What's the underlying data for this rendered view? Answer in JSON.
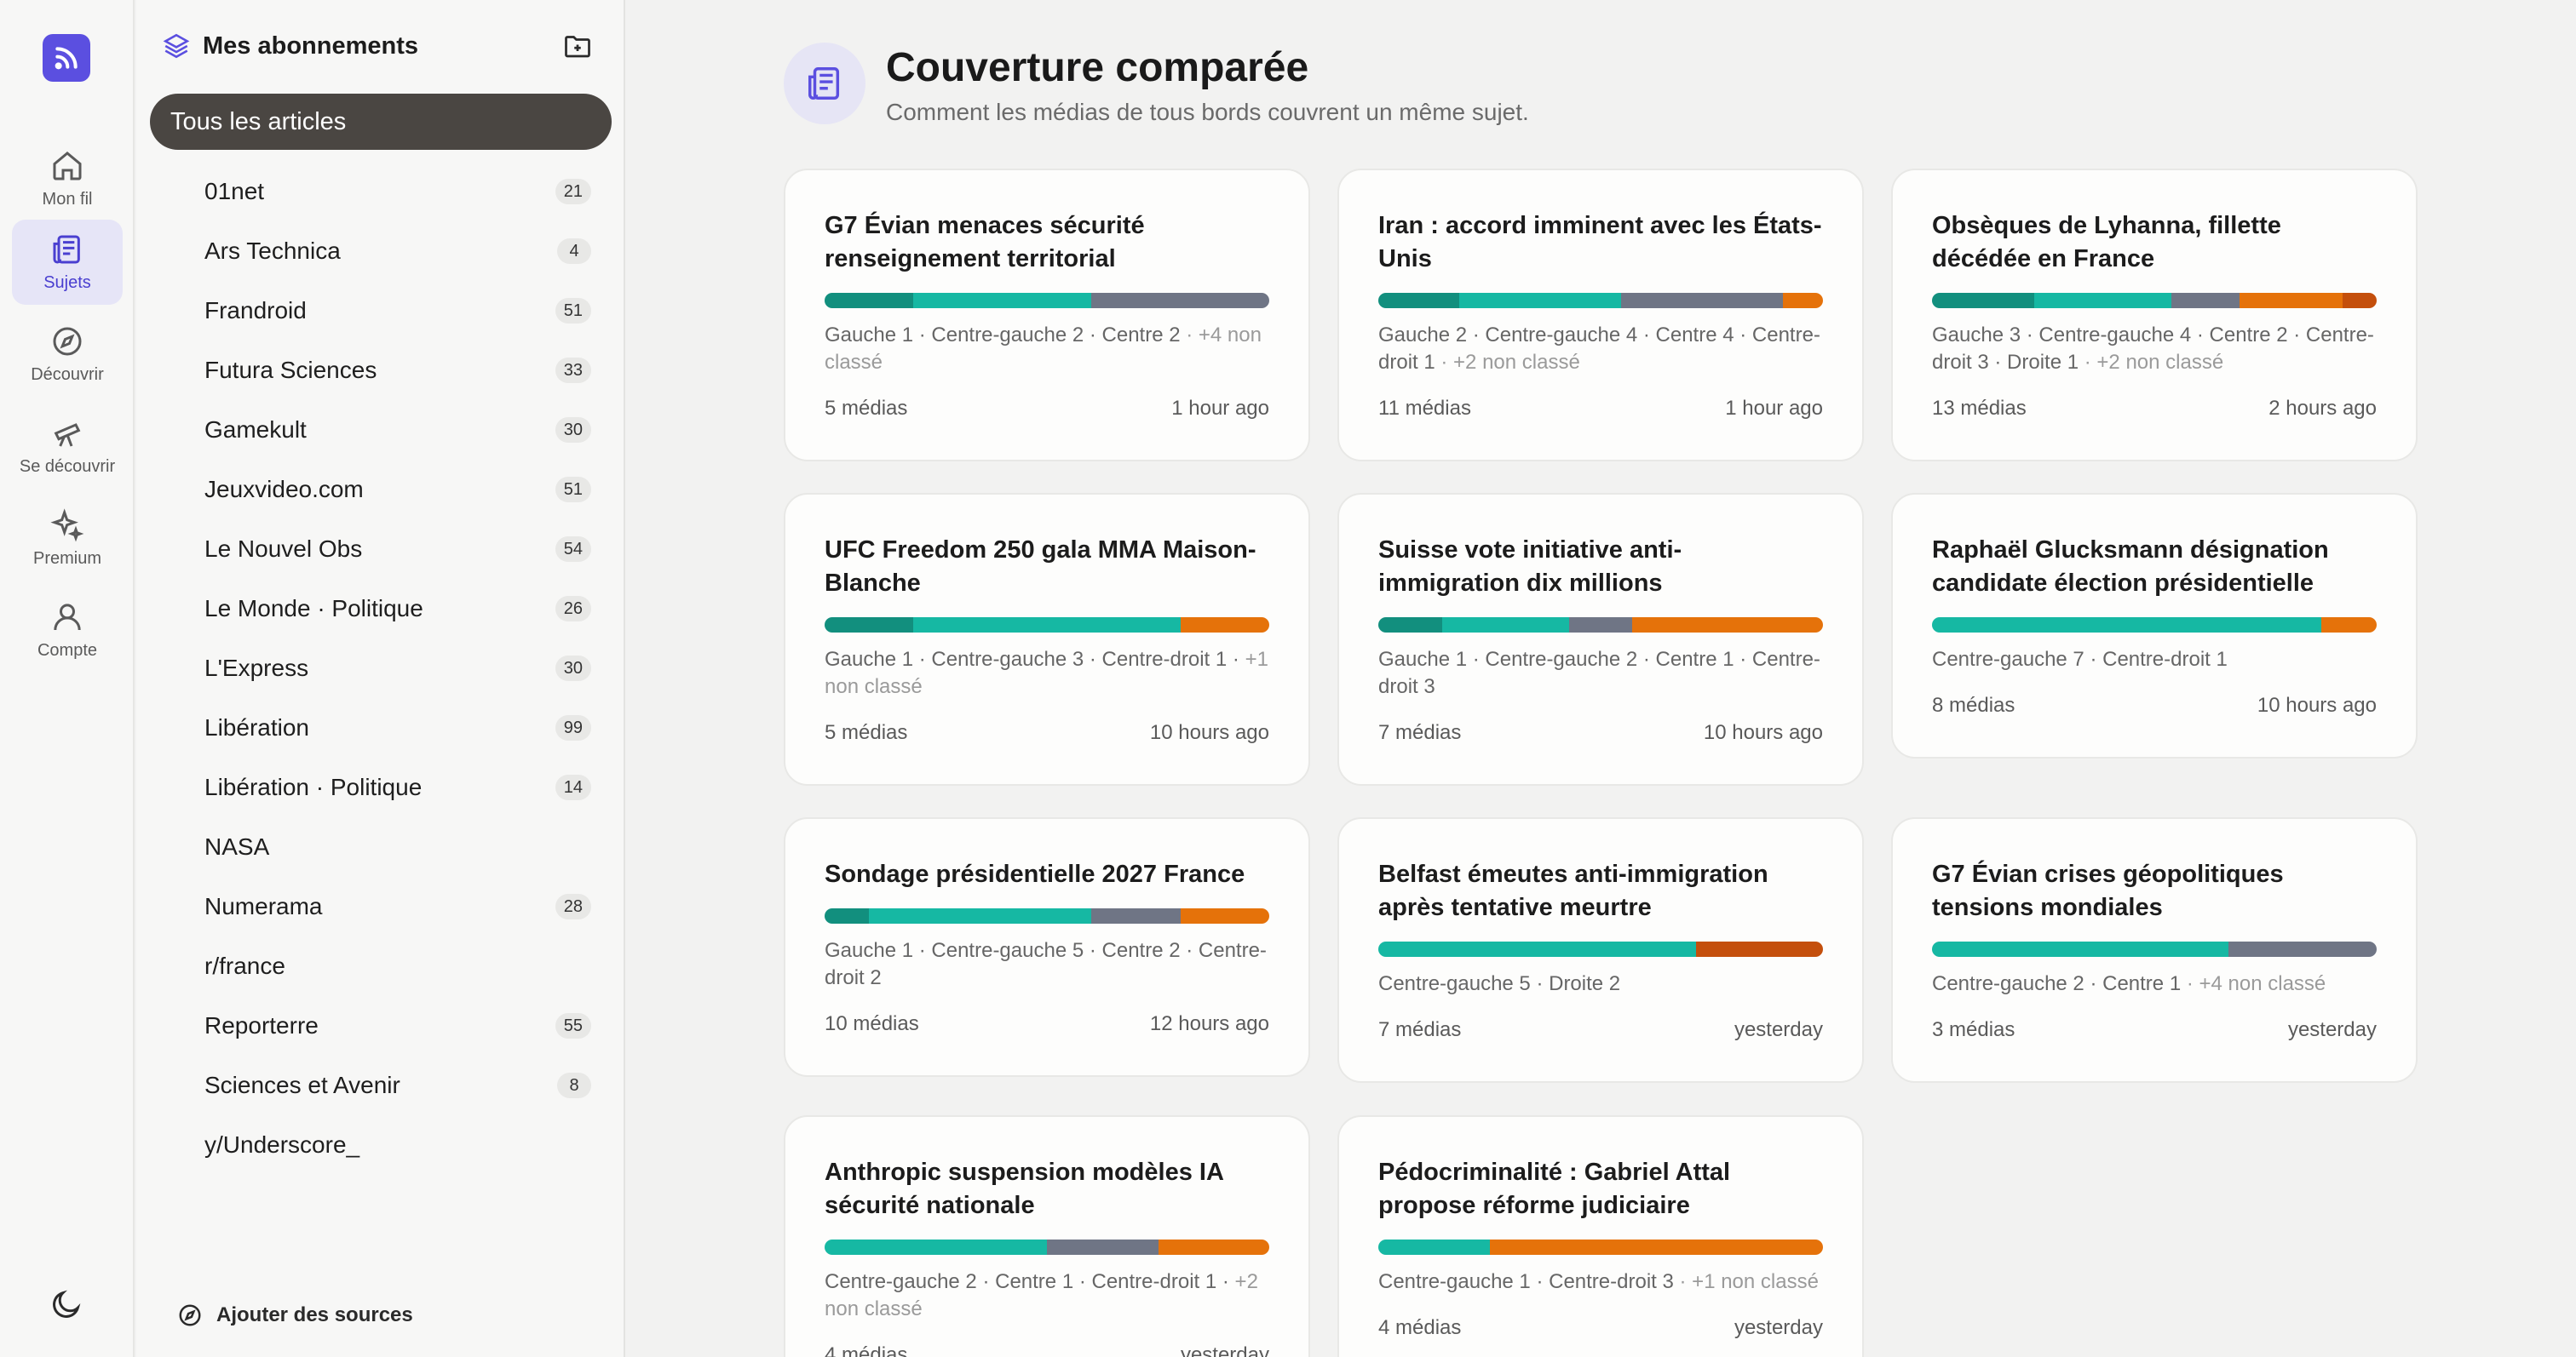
{
  "rail": {
    "items": [
      {
        "label": "Mon fil",
        "icon": "home-icon"
      },
      {
        "label": "Sujets",
        "icon": "newspaper-icon",
        "active": true
      },
      {
        "label": "Découvrir",
        "icon": "compass-icon"
      },
      {
        "label": "Se découvrir",
        "icon": "telescope-icon"
      },
      {
        "label": "Premium",
        "icon": "sparkles-icon"
      },
      {
        "label": "Compte",
        "icon": "user-icon"
      }
    ]
  },
  "sidebar": {
    "title": "Mes abonnements",
    "all_articles": "Tous les articles",
    "feeds": [
      {
        "name": "01net",
        "count": "21"
      },
      {
        "name": "Ars Technica",
        "count": "4"
      },
      {
        "name": "Frandroid",
        "count": "51"
      },
      {
        "name": "Futura Sciences",
        "count": "33"
      },
      {
        "name": "Gamekult",
        "count": "30"
      },
      {
        "name": "Jeuxvideo.com",
        "count": "51"
      },
      {
        "name": "Le Nouvel Obs",
        "count": "54"
      },
      {
        "name": "Le Monde · Politique",
        "count": "26"
      },
      {
        "name": "L'Express",
        "count": "30"
      },
      {
        "name": "Libération",
        "count": "99"
      },
      {
        "name": "Libération · Politique",
        "count": "14"
      },
      {
        "name": "NASA",
        "count": ""
      },
      {
        "name": "Numerama",
        "count": "28"
      },
      {
        "name": "r/france",
        "count": ""
      },
      {
        "name": "Reporterre",
        "count": "55"
      },
      {
        "name": "Sciences et Avenir",
        "count": "8"
      },
      {
        "name": "y/Underscore_",
        "count": ""
      }
    ],
    "add_sources": "Ajouter des sources"
  },
  "main": {
    "title": "Couverture comparée",
    "subtitle": "Comment les médias de tous bords couvrent un même sujet."
  },
  "colors": {
    "gauche": "#128f7e",
    "centre_gauche": "#16b8a3",
    "centre": "#6f7585",
    "centre_droit": "#e5720a",
    "droite": "#c44f0c",
    "accent": "#5b4fe0"
  },
  "cards": [
    {
      "title": "G7 Évian menaces sécurité renseignement territorial",
      "bar": {
        "g": 1,
        "cg": 2,
        "c": 2,
        "cd": 0,
        "d": 0
      },
      "breakdown": "Gauche 1 · Centre-gauche 2 · Centre 2",
      "unclassified": " · +4 non classé",
      "media": "5 médias",
      "time": "1 hour ago"
    },
    {
      "title": "Iran : accord imminent avec les États-Unis",
      "bar": {
        "g": 2,
        "cg": 4,
        "c": 4,
        "cd": 1,
        "d": 0
      },
      "breakdown": "Gauche 2 · Centre-gauche 4 · Centre 4 · Centre-droit 1",
      "unclassified": " · +2 non classé",
      "media": "11 médias",
      "time": "1 hour ago"
    },
    {
      "title": "Obsèques de Lyhanna, fillette décédée en France",
      "bar": {
        "g": 3,
        "cg": 4,
        "c": 2,
        "cd": 3,
        "d": 1
      },
      "breakdown": "Gauche 3 · Centre-gauche 4 · Centre 2 · Centre-droit 3 · Droite 1",
      "unclassified": " · +2 non classé",
      "media": "13 médias",
      "time": "2 hours ago"
    },
    {
      "title": "UFC Freedom 250 gala MMA Maison-Blanche",
      "bar": {
        "g": 1,
        "cg": 3,
        "c": 0,
        "cd": 1,
        "d": 0
      },
      "breakdown": "Gauche 1 · Centre-gauche 3 · Centre-droit 1 ·",
      "unclassified": " +1 non classé",
      "media": "5 médias",
      "time": "10 hours ago"
    },
    {
      "title": "Suisse vote initiative anti-immigration dix millions",
      "bar": {
        "g": 1,
        "cg": 2,
        "c": 1,
        "cd": 3,
        "d": 0
      },
      "breakdown": "Gauche 1 · Centre-gauche 2 · Centre 1 · Centre-droit 3",
      "unclassified": "",
      "media": "7 médias",
      "time": "10 hours ago"
    },
    {
      "title": "Raphaël Glucksmann désignation candidate élection présidentielle",
      "bar": {
        "g": 0,
        "cg": 7,
        "c": 0,
        "cd": 1,
        "d": 0
      },
      "breakdown": "Centre-gauche 7 · Centre-droit 1",
      "unclassified": "",
      "media": "8 médias",
      "time": "10 hours ago"
    },
    {
      "title": "Sondage présidentielle 2027 France",
      "bar": {
        "g": 1,
        "cg": 5,
        "c": 2,
        "cd": 2,
        "d": 0
      },
      "breakdown": "Gauche 1 · Centre-gauche 5 · Centre 2 · Centre-droit 2",
      "unclassified": "",
      "media": "10 médias",
      "time": "12 hours ago"
    },
    {
      "title": "Belfast émeutes anti-immigration après tentative meurtre",
      "bar": {
        "g": 0,
        "cg": 5,
        "c": 0,
        "cd": 0,
        "d": 2
      },
      "breakdown": "Centre-gauche 5 · Droite 2",
      "unclassified": "",
      "media": "7 médias",
      "time": "yesterday"
    },
    {
      "title": "G7 Évian crises géopolitiques tensions mondiales",
      "bar": {
        "g": 0,
        "cg": 2,
        "c": 1,
        "cd": 0,
        "d": 0
      },
      "breakdown": "Centre-gauche 2 · Centre 1",
      "unclassified": " · +4 non classé",
      "media": "3 médias",
      "time": "yesterday"
    },
    {
      "title": "Anthropic suspension modèles IA sécurité nationale",
      "bar": {
        "g": 0,
        "cg": 2,
        "c": 1,
        "cd": 1,
        "d": 0
      },
      "breakdown": "Centre-gauche 2 · Centre 1 · Centre-droit 1 ·",
      "unclassified": " +2 non classé",
      "media": "4 médias",
      "time": "yesterday"
    },
    {
      "title": "Pédocriminalité : Gabriel Attal propose réforme judiciaire",
      "bar": {
        "g": 0,
        "cg": 1,
        "c": 0,
        "cd": 3,
        "d": 0
      },
      "breakdown": "Centre-gauche 1 · Centre-droit 3",
      "unclassified": " · +1 non classé",
      "media": "4 médias",
      "time": "yesterday"
    }
  ]
}
